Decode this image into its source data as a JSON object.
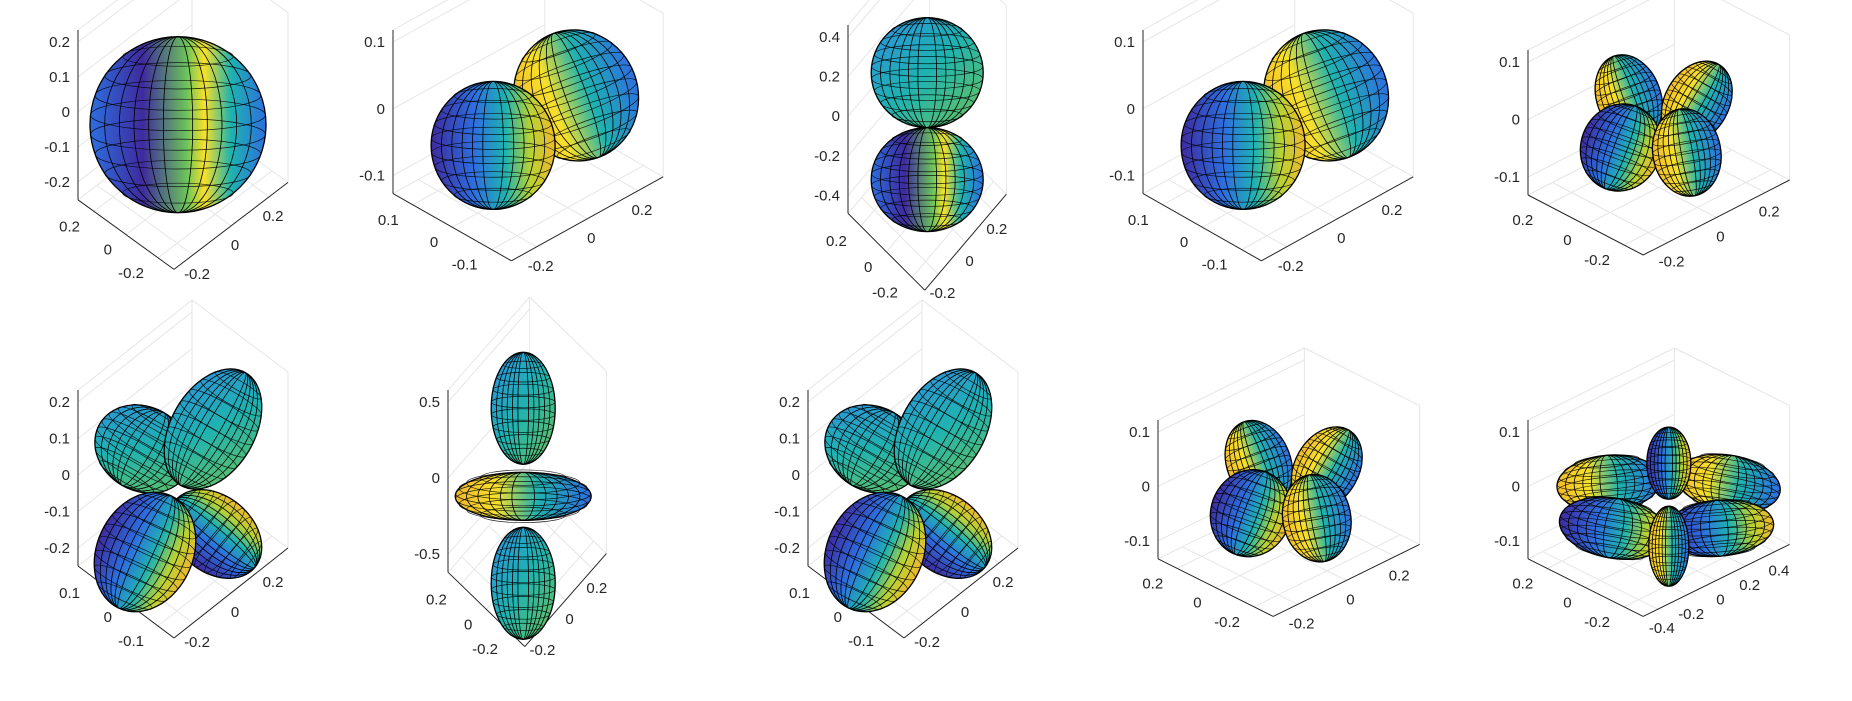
{
  "palette": {
    "violet": "#3e2a9e",
    "blue": "#2d6fe0",
    "teal": "#1fb3b0",
    "green": "#6cc45a",
    "yellow": "#f8e12a",
    "gold": "#f0b92c",
    "mesh": "#000000",
    "axis": "#262626",
    "grid": "#e6e6e6"
  },
  "chart_data": [
    {
      "type": "surface3d",
      "panel": 1,
      "shape": "sphere",
      "z_ticks": [
        "0.2",
        "0.1",
        "0",
        "-0.1",
        "-0.2"
      ],
      "y_ticks": [
        "0.2",
        "0",
        "-0.2"
      ],
      "x_ticks": [
        "-0.2",
        "0",
        "0.2"
      ],
      "zlim": [
        -0.28,
        0.28
      ],
      "ylim": [
        -0.28,
        0.28
      ],
      "xlim": [
        -0.28,
        0.28
      ]
    },
    {
      "type": "surface3d",
      "panel": 2,
      "shape": "two-lobes-horizontal",
      "z_ticks": [
        "0.1",
        "0",
        "-0.1"
      ],
      "y_ticks": [
        "0.1",
        "0",
        "-0.1"
      ],
      "x_ticks": [
        "-0.2",
        "0",
        "0.2"
      ],
      "zlim": [
        -0.15,
        0.15
      ],
      "ylim": [
        -0.15,
        0.15
      ],
      "xlim": [
        -0.35,
        0.35
      ]
    },
    {
      "type": "surface3d",
      "panel": 3,
      "shape": "two-lobes-vertical",
      "z_ticks": [
        "0.4",
        "0.2",
        "0",
        "-0.2",
        "-0.4"
      ],
      "y_ticks": [
        "0.2",
        "0",
        "-0.2"
      ],
      "x_ticks": [
        "-0.2",
        "0",
        "0.2"
      ],
      "zlim": [
        -0.5,
        0.5
      ],
      "ylim": [
        -0.28,
        0.28
      ],
      "xlim": [
        -0.28,
        0.28
      ]
    },
    {
      "type": "surface3d",
      "panel": 4,
      "shape": "two-lobes-horizontal",
      "z_ticks": [
        "0.1",
        "0",
        "-0.1"
      ],
      "y_ticks": [
        "0.1",
        "0",
        "-0.1"
      ],
      "x_ticks": [
        "-0.2",
        "0",
        "0.2"
      ],
      "zlim": [
        -0.15,
        0.15
      ],
      "ylim": [
        -0.15,
        0.15
      ],
      "xlim": [
        -0.35,
        0.35
      ]
    },
    {
      "type": "surface3d",
      "panel": 5,
      "shape": "four-lobes-flat",
      "z_ticks": [
        "0.1",
        "0",
        "-0.1"
      ],
      "y_ticks": [
        "0.2",
        "0",
        "-0.2"
      ],
      "x_ticks": [
        "-0.2",
        "0",
        "0.2"
      ],
      "zlim": [
        -0.15,
        0.15
      ],
      "ylim": [
        -0.3,
        0.3
      ],
      "xlim": [
        -0.3,
        0.3
      ]
    },
    {
      "type": "surface3d",
      "panel": 6,
      "shape": "four-lobes-diagonal",
      "z_ticks": [
        "0.2",
        "0.1",
        "0",
        "-0.1",
        "-0.2"
      ],
      "y_ticks": [
        "0.1",
        "0",
        "-0.1"
      ],
      "x_ticks": [
        "-0.2",
        "0",
        "0.2"
      ],
      "zlim": [
        -0.28,
        0.28
      ],
      "ylim": [
        -0.15,
        0.15
      ],
      "xlim": [
        -0.3,
        0.3
      ]
    },
    {
      "type": "surface3d",
      "panel": 7,
      "shape": "dz2-like",
      "z_ticks": [
        "0.5",
        "0",
        "-0.5"
      ],
      "y_ticks": [
        "0.2",
        "0",
        "-0.2"
      ],
      "x_ticks": [
        "-0.2",
        "0",
        "0.2"
      ],
      "zlim": [
        -0.65,
        0.65
      ],
      "ylim": [
        -0.28,
        0.28
      ],
      "xlim": [
        -0.28,
        0.28
      ]
    },
    {
      "type": "surface3d",
      "panel": 8,
      "shape": "four-lobes-diagonal",
      "z_ticks": [
        "0.2",
        "0.1",
        "0",
        "-0.1",
        "-0.2"
      ],
      "y_ticks": [
        "0.1",
        "0",
        "-0.1"
      ],
      "x_ticks": [
        "-0.2",
        "0",
        "0.2"
      ],
      "zlim": [
        -0.28,
        0.28
      ],
      "ylim": [
        -0.15,
        0.15
      ],
      "xlim": [
        -0.3,
        0.3
      ]
    },
    {
      "type": "surface3d",
      "panel": 9,
      "shape": "four-lobes-flat",
      "z_ticks": [
        "0.1",
        "0",
        "-0.1"
      ],
      "y_ticks": [
        "0.2",
        "0",
        "-0.2"
      ],
      "x_ticks": [
        "-0.2",
        "0",
        "0.2"
      ],
      "zlim": [
        -0.15,
        0.15
      ],
      "ylim": [
        -0.3,
        0.3
      ],
      "xlim": [
        -0.3,
        0.3
      ]
    },
    {
      "type": "surface3d",
      "panel": 10,
      "shape": "six-lobes-flat",
      "z_ticks": [
        "0.1",
        "0",
        "-0.1"
      ],
      "y_ticks": [
        "0.2",
        "0",
        "-0.2"
      ],
      "x_ticks": [
        "-0.4",
        "-0.2",
        "0",
        "0.2",
        "0.4"
      ],
      "zlim": [
        -0.15,
        0.15
      ],
      "ylim": [
        -0.3,
        0.3
      ],
      "xlim": [
        -0.45,
        0.45
      ]
    }
  ]
}
